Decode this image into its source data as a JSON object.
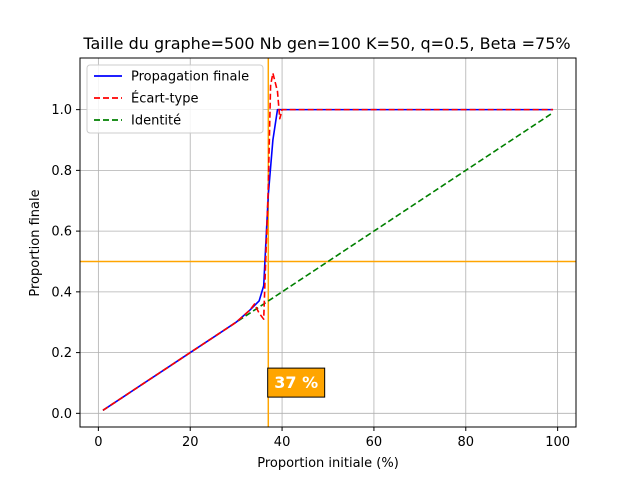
{
  "chart_data": {
    "type": "line",
    "title": "Taille du graphe=500 Nb gen=100 K=50, q=0.5, Beta =75%",
    "xlabel": "Proportion initiale (%)",
    "ylabel": "Proportion finale",
    "xlim": [
      -4,
      104
    ],
    "ylim": [
      -0.045,
      1.17
    ],
    "xticks": [
      0,
      20,
      40,
      60,
      80,
      100
    ],
    "xtick_labels": [
      "0",
      "20",
      "40",
      "60",
      "80",
      "100"
    ],
    "yticks": [
      0.0,
      0.2,
      0.4,
      0.6,
      0.8,
      1.0
    ],
    "ytick_labels": [
      "0.0",
      "0.2",
      "0.4",
      "0.6",
      "0.8",
      "1.0"
    ],
    "grid": true,
    "legend_position": "top-left",
    "series": [
      {
        "name": "Propagation finale",
        "color": "#0000ff",
        "style": "solid",
        "x": [
          1,
          5,
          10,
          15,
          20,
          25,
          30,
          33,
          35,
          36,
          37,
          38,
          39,
          40,
          50,
          60,
          70,
          80,
          90,
          99
        ],
        "y": [
          0.01,
          0.05,
          0.1,
          0.15,
          0.2,
          0.25,
          0.3,
          0.34,
          0.37,
          0.42,
          0.72,
          0.9,
          1.0,
          1.0,
          1.0,
          1.0,
          1.0,
          1.0,
          1.0,
          1.0
        ]
      },
      {
        "name": "Écart-type",
        "color": "#ff0000",
        "style": "dashed",
        "x": [
          1,
          5,
          10,
          15,
          20,
          25,
          30,
          33,
          34,
          35,
          36,
          37,
          37.5,
          38,
          39,
          39.5,
          40,
          50,
          60,
          70,
          80,
          90,
          99
        ],
        "y": [
          0.01,
          0.05,
          0.1,
          0.15,
          0.2,
          0.25,
          0.3,
          0.34,
          0.36,
          0.33,
          0.31,
          0.75,
          1.08,
          1.12,
          1.06,
          0.97,
          1.0,
          1.0,
          1.0,
          1.0,
          1.0,
          1.0,
          1.0
        ]
      },
      {
        "name": "Identité",
        "color": "#008000",
        "style": "dashed",
        "x": [
          1,
          99
        ],
        "y": [
          0.01,
          0.99
        ]
      }
    ],
    "reference_lines": {
      "color": "#ffa500",
      "vertical_x": 37,
      "horizontal_y": 0.5
    },
    "annotation": {
      "text": "37 %",
      "x": 37.3,
      "y": 0.06,
      "background": "#ffa500",
      "text_color": "#ffffff"
    }
  }
}
